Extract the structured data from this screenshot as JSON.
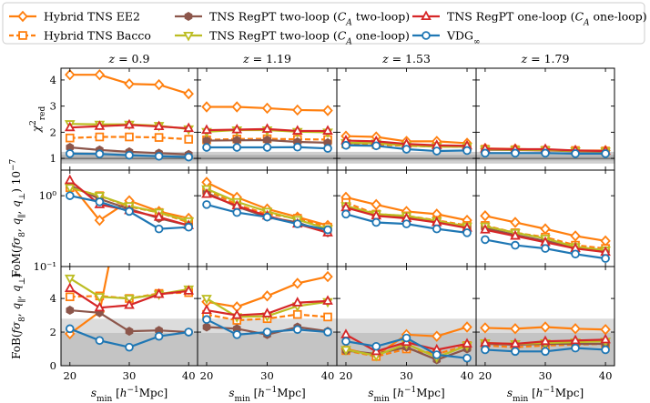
{
  "chart_data": {
    "type": "line",
    "layout": "3 rows x 4 columns grid of small-multiple line panels",
    "columns": [
      {
        "title": "z = 0.9"
      },
      {
        "title": "z = 1.19"
      },
      {
        "title": "z = 1.53"
      },
      {
        "title": "z = 1.79"
      }
    ],
    "x": [
      20,
      25,
      30,
      35,
      40
    ],
    "x_ticks": [
      20,
      30,
      40
    ],
    "xlim": [
      18.5,
      41.5
    ],
    "xlabel": "s_min [h^-1 Mpc]",
    "legend_placement": "top",
    "legend": [
      {
        "key": "ee2",
        "label": "Hybrid TNS EE2",
        "color": "#ff7f0e",
        "marker": "diamond",
        "dashed": false
      },
      {
        "key": "bacco",
        "label": "Hybrid TNS Bacco",
        "color": "#ff7f0e",
        "marker": "square",
        "dashed": true
      },
      {
        "key": "tl2",
        "label": "TNS RegPT two-loop (C_A two-loop)",
        "color": "#8c564b",
        "marker": "hexagon",
        "dashed": false
      },
      {
        "key": "tl1",
        "label": "TNS RegPT two-loop (C_A one-loop)",
        "color": "#bcbd22",
        "marker": "triangle-down",
        "dashed": false
      },
      {
        "key": "ol",
        "label": "TNS RegPT one-loop (C_A one-loop)",
        "color": "#d62728",
        "marker": "triangle-up",
        "dashed": false
      },
      {
        "key": "vdg",
        "label": "VDG_∞",
        "color": "#1f77b4",
        "marker": "circle",
        "dashed": false
      }
    ],
    "legend_display": [
      {
        "key": "ee2",
        "parts": [
          {
            "t": "Hybrid TNS EE2"
          }
        ]
      },
      {
        "key": "bacco",
        "parts": [
          {
            "t": "Hybrid TNS Bacco"
          }
        ]
      },
      {
        "key": "tl2",
        "parts": [
          {
            "t": "TNS RegPT two-loop ("
          },
          {
            "t": "C",
            "i": true
          },
          {
            "t": "A",
            "i": true,
            "sub": true
          },
          {
            "t": " two-loop)"
          }
        ]
      },
      {
        "key": "tl1",
        "parts": [
          {
            "t": "TNS RegPT two-loop ("
          },
          {
            "t": "C",
            "i": true
          },
          {
            "t": "A",
            "i": true,
            "sub": true
          },
          {
            "t": " one-loop)"
          }
        ]
      },
      {
        "key": "ol",
        "parts": [
          {
            "t": "TNS RegPT one-loop ("
          },
          {
            "t": "C",
            "i": true
          },
          {
            "t": "A",
            "i": true,
            "sub": true
          },
          {
            "t": " one-loop)"
          }
        ]
      },
      {
        "key": "vdg",
        "parts": [
          {
            "t": "VDG"
          },
          {
            "t": "∞",
            "sub": true
          }
        ]
      }
    ],
    "rows": [
      {
        "name": "chi2_red",
        "ylabel": "χ²_red",
        "ylabel_display": [
          {
            "t": "χ",
            "i": true
          },
          {
            "t": "2",
            "sup": true
          },
          {
            "t": "red",
            "sub": true
          }
        ],
        "yscale": "linear",
        "ylim": [
          0.55,
          4.45
        ],
        "yticks": [
          1,
          2,
          3,
          4
        ],
        "yticklabels": [
          "1",
          "2",
          "3",
          "4"
        ],
        "bands": [
          {
            "range": [
              0.8,
              1.25
            ],
            "color": "#cfcfcf"
          },
          {
            "range": [
              0.92,
              1.13
            ],
            "color": "#b4b4b4"
          }
        ],
        "hlines": [
          1.0
        ],
        "series": {
          "ee2": [
            [
              4.2,
              4.2,
              3.85,
              3.82,
              3.47
            ],
            [
              2.97,
              2.97,
              2.92,
              2.85,
              2.83
            ],
            [
              1.85,
              1.82,
              1.65,
              1.65,
              1.58
            ],
            [
              1.38,
              1.36,
              1.33,
              1.3,
              1.3
            ]
          ],
          "bacco": [
            [
              1.78,
              1.82,
              1.82,
              1.8,
              1.73
            ],
            [
              1.71,
              1.74,
              1.75,
              1.73,
              1.72
            ],
            [
              1.55,
              1.53,
              1.48,
              1.45,
              1.45
            ],
            [
              1.35,
              1.33,
              1.31,
              1.3,
              1.28
            ]
          ],
          "tl2": [
            [
              1.42,
              1.32,
              1.25,
              1.2,
              1.15
            ],
            [
              1.68,
              1.69,
              1.7,
              1.63,
              1.6
            ],
            [
              1.58,
              1.58,
              1.5,
              1.45,
              1.45
            ],
            [
              1.33,
              1.32,
              1.3,
              1.27,
              1.25
            ]
          ],
          "tl1": [
            [
              2.32,
              2.3,
              2.3,
              2.25,
              2.12
            ],
            [
              2.02,
              2.08,
              2.08,
              2.02,
              2.0
            ],
            [
              1.6,
              1.58,
              1.5,
              1.45,
              1.45
            ],
            [
              1.35,
              1.33,
              1.32,
              1.28,
              1.27
            ]
          ],
          "ol": [
            [
              2.18,
              2.23,
              2.28,
              2.22,
              2.15
            ],
            [
              2.08,
              2.1,
              2.12,
              2.05,
              2.05
            ],
            [
              1.68,
              1.65,
              1.55,
              1.5,
              1.48
            ],
            [
              1.37,
              1.35,
              1.35,
              1.3,
              1.28
            ]
          ],
          "vdg": [
            [
              1.18,
              1.17,
              1.12,
              1.08,
              1.05
            ],
            [
              1.42,
              1.42,
              1.42,
              1.43,
              1.38
            ],
            [
              1.5,
              1.48,
              1.35,
              1.28,
              1.3
            ],
            [
              1.2,
              1.2,
              1.2,
              1.18,
              1.18
            ]
          ]
        }
      },
      {
        "name": "FoM",
        "ylabel": "FoM(fσ8, q∥, q⊥) 10^-7",
        "ylabel_display": [
          {
            "t": "FoM("
          },
          {
            "t": "fσ",
            "i": true
          },
          {
            "t": "8",
            "sub": true
          },
          {
            "t": ", "
          },
          {
            "t": "q",
            "i": true
          },
          {
            "t": "∥",
            "sub": true
          },
          {
            "t": ", "
          },
          {
            "t": "q",
            "i": true
          },
          {
            "t": "⊥",
            "sub": true
          },
          {
            "t": ") 10"
          },
          {
            "t": "−7",
            "sup": true
          }
        ],
        "yscale": "log",
        "ylim": [
          0.1,
          2.3
        ],
        "yticks": [
          0.1,
          1
        ],
        "yticklabels": [
          "10⁻¹",
          "10⁰"
        ],
        "bands": [],
        "hlines": [],
        "series": {
          "ee2": [
            [
              1.5,
              0.45,
              0.85,
              0.6,
              0.48
            ],
            [
              1.55,
              0.95,
              0.65,
              0.5,
              0.38
            ],
            [
              0.95,
              0.75,
              0.6,
              0.55,
              0.45
            ],
            [
              0.52,
              0.42,
              0.34,
              0.27,
              0.23
            ]
          ],
          "bacco": [
            [
              1.3,
              1.0,
              0.7,
              0.58,
              0.42
            ],
            [
              1.2,
              0.75,
              0.55,
              0.48,
              0.36
            ],
            [
              0.8,
              0.55,
              0.52,
              0.45,
              0.38
            ],
            [
              0.38,
              0.3,
              0.26,
              0.2,
              0.18
            ]
          ],
          "tl2": [
            [
              1.4,
              0.9,
              0.65,
              0.48,
              0.38
            ],
            [
              1.1,
              0.7,
              0.5,
              0.42,
              0.3
            ],
            [
              0.7,
              0.52,
              0.5,
              0.42,
              0.36
            ],
            [
              0.35,
              0.28,
              0.23,
              0.19,
              0.16
            ]
          ],
          "tl1": [
            [
              1.3,
              1.0,
              0.72,
              0.58,
              0.44
            ],
            [
              1.25,
              0.82,
              0.6,
              0.46,
              0.34
            ],
            [
              0.72,
              0.55,
              0.52,
              0.44,
              0.37
            ],
            [
              0.37,
              0.3,
              0.25,
              0.19,
              0.17
            ]
          ],
          "ol": [
            [
              1.65,
              0.75,
              0.62,
              0.5,
              0.38
            ],
            [
              1.05,
              0.72,
              0.52,
              0.4,
              0.3
            ],
            [
              0.68,
              0.52,
              0.48,
              0.42,
              0.35
            ],
            [
              0.33,
              0.27,
              0.22,
              0.18,
              0.16
            ]
          ],
          "vdg": [
            [
              1.0,
              0.82,
              0.6,
              0.34,
              0.36
            ],
            [
              0.75,
              0.58,
              0.5,
              0.4,
              0.33
            ],
            [
              0.55,
              0.42,
              0.4,
              0.34,
              0.3
            ],
            [
              0.24,
              0.2,
              0.18,
              0.15,
              0.13
            ]
          ]
        }
      },
      {
        "name": "FoB",
        "ylabel": "FoB(fσ8, q∥, q⊥)",
        "ylabel_display": [
          {
            "t": "FoB("
          },
          {
            "t": "fσ",
            "i": true
          },
          {
            "t": "8",
            "sub": true
          },
          {
            "t": ", "
          },
          {
            "t": "q",
            "i": true
          },
          {
            "t": "∥",
            "sub": true
          },
          {
            "t": ", "
          },
          {
            "t": "q",
            "i": true
          },
          {
            "t": "⊥",
            "sub": true
          },
          {
            "t": ")"
          }
        ],
        "yscale": "linear",
        "ylim": [
          0,
          5.9
        ],
        "yticks": [
          0,
          2,
          4
        ],
        "yticklabels": [
          "0",
          "2",
          "4"
        ],
        "bands": [
          {
            "range": [
              0,
              2.8
            ],
            "color": "#dcdcdc"
          },
          {
            "range": [
              0,
              1.95
            ],
            "color": "#c4c4c4"
          }
        ],
        "hlines": [],
        "series": {
          "ee2": [
            [
              1.9,
              3.2,
              12,
              null,
              null
            ],
            [
              3.8,
              3.5,
              4.15,
              4.9,
              5.3
            ],
            [
              1.0,
              0.6,
              1.85,
              1.75,
              2.3
            ],
            [
              2.25,
              2.2,
              2.3,
              2.2,
              2.15
            ]
          ],
          "bacco": [
            [
              4.1,
              4.15,
              4.0,
              4.3,
              4.35
            ],
            [
              3.05,
              2.7,
              2.8,
              3.05,
              2.9
            ],
            [
              0.9,
              0.55,
              1.0,
              0.7,
              1.2
            ],
            [
              1.2,
              1.1,
              1.2,
              1.25,
              1.3
            ]
          ],
          "tl2": [
            [
              3.3,
              3.15,
              2.05,
              2.1,
              2.0
            ],
            [
              2.3,
              2.2,
              1.85,
              2.3,
              2.05
            ],
            [
              0.9,
              0.7,
              1.1,
              0.35,
              1.0
            ],
            [
              1.3,
              1.25,
              1.3,
              1.3,
              1.3
            ]
          ],
          "tl1": [
            [
              5.2,
              4.1,
              4.0,
              4.25,
              4.55
            ],
            [
              4.0,
              2.9,
              2.95,
              3.55,
              3.8
            ],
            [
              0.95,
              0.6,
              1.3,
              0.5,
              1.2
            ],
            [
              1.35,
              1.3,
              1.35,
              1.4,
              1.45
            ]
          ],
          "ol": [
            [
              4.6,
              3.45,
              3.6,
              4.25,
              4.45
            ],
            [
              3.3,
              3.0,
              3.1,
              3.75,
              3.85
            ],
            [
              1.85,
              0.85,
              1.4,
              0.95,
              1.3
            ],
            [
              1.35,
              1.3,
              1.45,
              1.5,
              1.55
            ]
          ],
          "vdg": [
            [
              2.2,
              1.5,
              1.1,
              1.75,
              2.0
            ],
            [
              2.75,
              1.85,
              2.0,
              2.15,
              2.0
            ],
            [
              1.45,
              1.15,
              1.65,
              0.65,
              0.45
            ],
            [
              0.95,
              0.85,
              0.85,
              1.05,
              0.95
            ]
          ]
        }
      }
    ]
  }
}
